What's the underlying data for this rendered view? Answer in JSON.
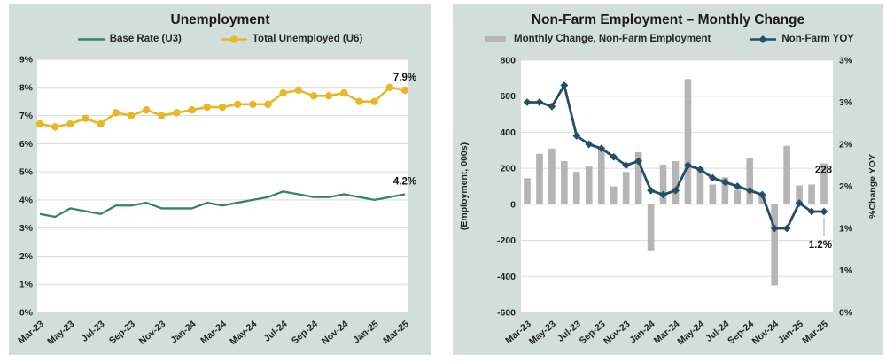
{
  "colors": {
    "panel_bg": "#d2ded9",
    "plot_bg": "#ffffff",
    "grid": "#dcdcdc",
    "teal": "#35826e",
    "gold": "#e8b723",
    "navy": "#234e68",
    "bar_gray": "#b5b5b5",
    "leader_gray": "#a6a6a6",
    "text_dark": "#1a1a1a"
  },
  "chart_data": [
    {
      "type": "line",
      "title": "Unemployment",
      "legend": [
        {
          "label": "Base Rate (U3)",
          "swatch": "line",
          "color": "#35826e"
        },
        {
          "label": "Total Unemployed (U6)",
          "swatch": "line-dot",
          "color": "#e8b723"
        }
      ],
      "categories": [
        "Mar-23",
        "Apr-23",
        "May-23",
        "Jun-23",
        "Jul-23",
        "Aug-23",
        "Sep-23",
        "Oct-23",
        "Nov-23",
        "Dec-23",
        "Jan-24",
        "Feb-24",
        "Mar-24",
        "Apr-24",
        "May-24",
        "Jun-24",
        "Jul-24",
        "Aug-24",
        "Sep-24",
        "Oct-24",
        "Nov-24",
        "Dec-24",
        "Jan-25",
        "Feb-25",
        "Mar-25"
      ],
      "x_tick_labels": [
        "Mar-23",
        "May-23",
        "Jul-23",
        "Sep-23",
        "Nov-23",
        "Jan-24",
        "Mar-24",
        "May-24",
        "Jul-24",
        "Sep-24",
        "Nov-24",
        "Jan-25",
        "Mar-25"
      ],
      "points_per_tick": 2,
      "y_axis": {
        "min": 0,
        "max": 9,
        "step": 1,
        "suffix": "%"
      },
      "grid": "on",
      "legend_position": "top",
      "series": [
        {
          "name": "Base Rate (U3)",
          "color": "#35826e",
          "marker": "none",
          "width": 2.3,
          "values": [
            3.5,
            3.4,
            3.7,
            3.6,
            3.5,
            3.8,
            3.8,
            3.9,
            3.7,
            3.7,
            3.7,
            3.9,
            3.8,
            3.9,
            4.0,
            4.1,
            4.3,
            4.2,
            4.1,
            4.1,
            4.2,
            4.1,
            4.0,
            4.1,
            4.2
          ]
        },
        {
          "name": "Total Unemployed (U6)",
          "color": "#e8b723",
          "marker": "circle",
          "width": 2.6,
          "values": [
            6.7,
            6.6,
            6.7,
            6.9,
            6.7,
            7.1,
            7.0,
            7.2,
            7.0,
            7.1,
            7.2,
            7.3,
            7.3,
            7.4,
            7.4,
            7.4,
            7.8,
            7.9,
            7.7,
            7.7,
            7.8,
            7.5,
            7.5,
            8.0,
            7.9
          ]
        }
      ],
      "annotations": [
        {
          "text": "7.9%",
          "series": 1
        },
        {
          "text": "4.2%",
          "series": 0
        }
      ]
    },
    {
      "type": "combo",
      "title": "Non-Farm Employment – Monthly Change",
      "legend": [
        {
          "label": "Monthly Change, Non-Farm Employment",
          "swatch": "bar",
          "color": "#b5b5b5"
        },
        {
          "label": "Non-Farm YOY",
          "swatch": "line-diamond",
          "color": "#234e68"
        }
      ],
      "categories": [
        "Mar-23",
        "Apr-23",
        "May-23",
        "Jun-23",
        "Jul-23",
        "Aug-23",
        "Sep-23",
        "Oct-23",
        "Nov-23",
        "Dec-23",
        "Jan-24",
        "Feb-24",
        "Mar-24",
        "Apr-24",
        "May-24",
        "Jun-24",
        "Jul-24",
        "Aug-24",
        "Sep-24",
        "Oct-24",
        "Nov-24",
        "Dec-24",
        "Jan-25",
        "Feb-25",
        "Mar-25"
      ],
      "x_tick_labels": [
        "Mar-23",
        "May-23",
        "Jul-23",
        "Sep-23",
        "Nov-23",
        "Jan-24",
        "Mar-24",
        "May-24",
        "Jul-24",
        "Sep-24",
        "Nov-24",
        "Jan-25",
        "Mar-25"
      ],
      "points_per_tick": 2,
      "grid": "on",
      "legend_position": "top",
      "left_axis": {
        "min": -600,
        "max": 800,
        "step": 200,
        "label": "(Employment, 000s)"
      },
      "right_axis": {
        "min": 0,
        "max": 3,
        "label": "%Change YOY",
        "tick_labels": [
          "3%",
          "3%",
          "2%",
          "2%",
          "1%",
          "1%",
          "0%"
        ]
      },
      "series": [
        {
          "name": "Monthly Change, Non-Farm Employment",
          "type": "bar",
          "axis": "left",
          "color": "#b5b5b5",
          "values": [
            145,
            280,
            310,
            240,
            180,
            210,
            320,
            100,
            180,
            290,
            -260,
            220,
            240,
            695,
            205,
            110,
            150,
            80,
            255,
            50,
            -450,
            325,
            105,
            110,
            228
          ]
        },
        {
          "name": "Non-Farm YOY",
          "type": "line",
          "axis": "right",
          "color": "#234e68",
          "marker": "diamond",
          "width": 2.8,
          "values": [
            2.5,
            2.5,
            2.45,
            2.7,
            2.1,
            2.0,
            1.95,
            1.85,
            1.75,
            1.8,
            1.45,
            1.4,
            1.45,
            1.75,
            1.7,
            1.6,
            1.55,
            1.5,
            1.45,
            1.4,
            1.0,
            1.0,
            1.3,
            1.2,
            1.2
          ]
        }
      ],
      "annotations": [
        {
          "text": "228",
          "type": "bar-label",
          "point": 24,
          "value": 228
        },
        {
          "text": "1.2%",
          "type": "line-label-leader",
          "point": 24,
          "value": 1.2
        }
      ]
    }
  ]
}
